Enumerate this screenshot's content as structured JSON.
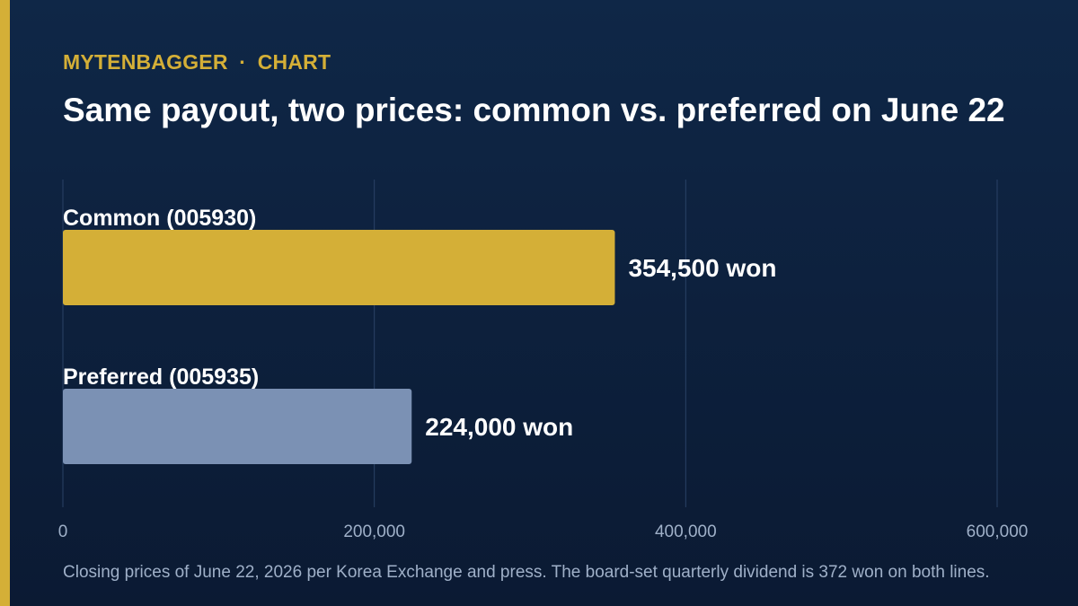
{
  "brand": {
    "name": "MYTENBAGGER",
    "separator": "·",
    "section": "CHART",
    "accent_color": "#d4af37"
  },
  "title": "Same payout, two prices: common vs. preferred on June 22",
  "footnote": "Closing prices of June 22, 2026 per Korea Exchange and press. The board-set quarterly dividend is 372 won on both lines.",
  "chart_data": {
    "type": "bar",
    "orientation": "horizontal",
    "categories": [
      "Common (005930)",
      "Preferred (005935)"
    ],
    "values": [
      354500,
      224000
    ],
    "value_labels": [
      "354,500 won",
      "224,000 won"
    ],
    "colors": [
      "#d4af37",
      "#7b91b4"
    ],
    "xlim": [
      0,
      600000
    ],
    "ticks": [
      0,
      200000,
      400000,
      600000
    ],
    "tick_labels": [
      "0",
      "200,000",
      "400,000",
      "600,000"
    ],
    "grid": "vertical",
    "legend": "none"
  }
}
